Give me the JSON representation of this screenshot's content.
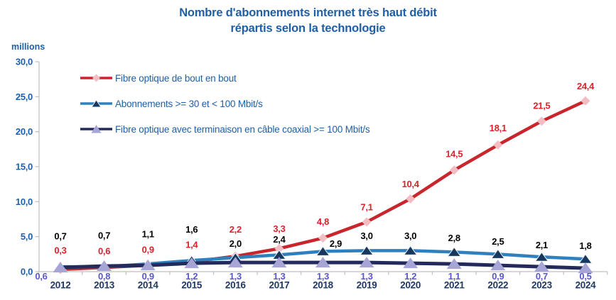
{
  "title": {
    "line1": "Nombre d'abonnements internet très haut débit",
    "line2": "répartis selon la technologie"
  },
  "y_axis": {
    "unit_label": "millions",
    "tick_labels": [
      "0,0",
      "5,0",
      "10,0",
      "15,0",
      "20,0",
      "25,0",
      "30,0"
    ]
  },
  "chart_data": {
    "type": "line",
    "title": "Nombre d'abonnements internet très haut débit répartis selon la technologie",
    "categories": [
      "2012",
      "2013",
      "2014",
      "2015",
      "2016",
      "2017",
      "2018",
      "2019",
      "2020",
      "2021",
      "2022",
      "2023",
      "2024"
    ],
    "series": [
      {
        "name": "Fibre optique de bout en bout",
        "values": [
          0.3,
          0.6,
          0.9,
          1.4,
          2.2,
          3.3,
          4.8,
          7.1,
          10.4,
          14.5,
          18.1,
          21.5,
          24.4
        ],
        "line_color": "#C9252C",
        "marker": "diamond",
        "marker_color": "#F3BDC3",
        "label_color": "#E0202C"
      },
      {
        "name": "Abonnements >= 30 et < 100 Mbit/s",
        "values": [
          0.7,
          0.7,
          1.1,
          1.6,
          2.0,
          2.4,
          2.9,
          3.0,
          3.0,
          2.8,
          2.5,
          2.1,
          1.8
        ],
        "line_color": "#2E81BE",
        "marker": "triangle",
        "marker_color": "#17375E",
        "label_color": "#000000"
      },
      {
        "name": "Fibre optique avec terminaison en câble coaxial >= 100 Mbit/s",
        "values": [
          0.6,
          0.8,
          0.9,
          1.2,
          1.3,
          1.3,
          1.3,
          1.3,
          1.2,
          1.1,
          0.9,
          0.7,
          0.5
        ],
        "line_color": "#232A5C",
        "marker": "triangle",
        "marker_color": "#A7A5D6",
        "label_color": "#5A58C8"
      }
    ],
    "ylim": [
      0,
      30
    ],
    "ylabel": "millions",
    "grid": false,
    "legend_position": "top-left-inside",
    "decimal_separator": ",",
    "axis_color": "#BFBFBF"
  }
}
